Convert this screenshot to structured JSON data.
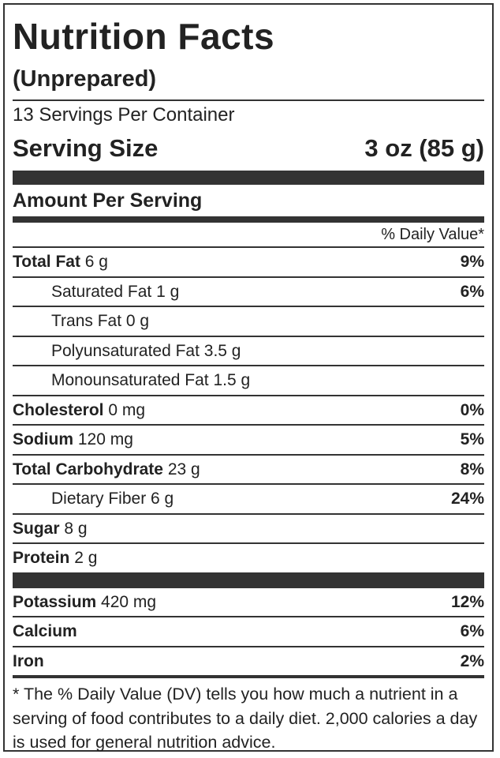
{
  "header": {
    "title": "Nutrition Facts",
    "subtitle": "(Unprepared)",
    "servings": "13 Servings Per Container",
    "serving_size_label": "Serving Size",
    "serving_size": "3 oz (85 g)",
    "amount_per_serving": "Amount Per Serving",
    "daily_value_heading": "% Daily Value*"
  },
  "nutrients": [
    {
      "name": "Total Fat",
      "amount": "6 g",
      "dv": "9%"
    },
    {
      "name": "Saturated Fat 1 g",
      "dv": "6%",
      "indent": true
    },
    {
      "name": "Trans Fat 0 g",
      "indent": true
    },
    {
      "name": "Polyunsaturated Fat 3.5 g",
      "indent": true
    },
    {
      "name": "Monounsaturated Fat 1.5 g",
      "indent": true
    },
    {
      "name": "Cholesterol",
      "amount": "0 mg",
      "dv": "0%"
    },
    {
      "name": "Sodium",
      "amount": "120 mg",
      "dv": "5%"
    },
    {
      "name": "Total Carbohydrate",
      "amount": "23 g",
      "dv": "8%"
    },
    {
      "name": "Dietary Fiber 6 g",
      "dv": "24%",
      "indent": true
    },
    {
      "name": "Sugar",
      "amount": "8 g"
    },
    {
      "name": "Protein",
      "amount": "2 g"
    }
  ],
  "minerals": [
    {
      "name": "Potassium",
      "amount": "420 mg",
      "dv": "12%"
    },
    {
      "name": "Calcium",
      "dv": "6%"
    },
    {
      "name": "Iron",
      "dv": "2%"
    }
  ],
  "footnote": "* The % Daily Value (DV) tells you how much a nutrient in a serving of food contributes to a daily diet. 2,000 calories a day is used for general nutrition advice."
}
